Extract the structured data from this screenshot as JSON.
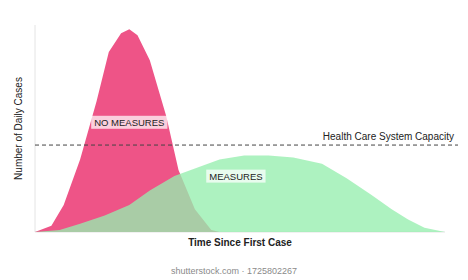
{
  "chart_data": {
    "type": "area",
    "x_label": "Time Since First Case",
    "y_label": "Number of Daily Cases",
    "xlim": [
      0,
      100
    ],
    "ylim": [
      0,
      100
    ],
    "tick_labels": false,
    "grid": false,
    "series": [
      {
        "name": "NO MEASURES",
        "color": "#ee5487",
        "x": [
          0,
          4,
          7,
          11,
          15,
          18,
          21,
          23,
          25,
          28,
          32,
          35,
          39,
          43,
          45
        ],
        "values": [
          0,
          3,
          13,
          35,
          63,
          87,
          96,
          98,
          95,
          83,
          56,
          30,
          11,
          1,
          0
        ]
      },
      {
        "name": "MEASURES",
        "color": "#96eeae",
        "x": [
          0,
          6,
          11,
          17,
          23,
          28,
          34,
          45,
          51,
          57,
          63,
          70,
          76,
          82,
          87,
          91,
          95,
          100
        ],
        "values": [
          0,
          1,
          4,
          8,
          13,
          20,
          27,
          35,
          37,
          37,
          36,
          33,
          26,
          18,
          11,
          6,
          2,
          0
        ]
      }
    ],
    "annotations": [
      {
        "value": 42,
        "label": "Health Care System Capacity",
        "line_style": "dashed"
      }
    ],
    "source": "shutterstock.com · 1725802267"
  }
}
